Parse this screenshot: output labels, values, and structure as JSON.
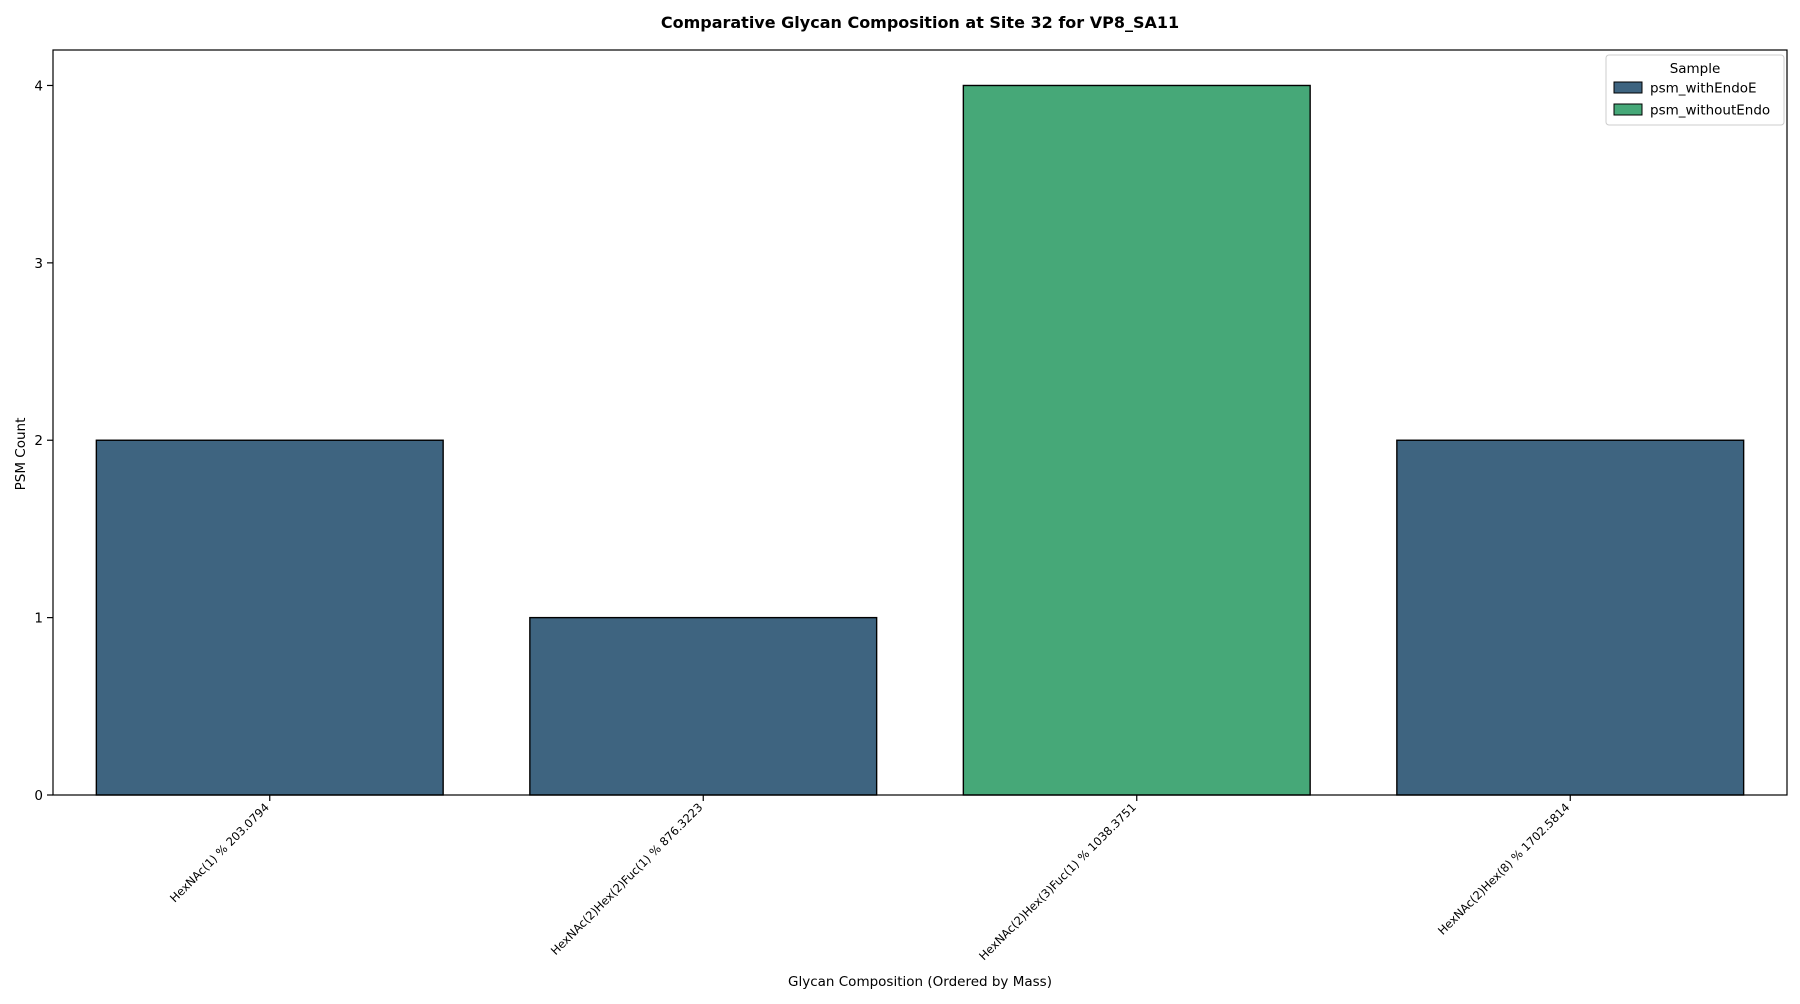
{
  "chart_data": {
    "type": "bar",
    "title": "Comparative Glycan Composition at Site 32 for VP8_SA11",
    "xlabel": "Glycan Composition (Ordered by Mass)",
    "ylabel": "PSM Count",
    "categories": [
      "HexNAc(1) % 203.0794",
      "HexNAc(2)Hex(2)Fuc(1) % 876.3223",
      "HexNAc(2)Hex(3)Fuc(1) % 1038.3751",
      "HexNAc(2)Hex(8) % 1702.5814"
    ],
    "bar_sample": [
      "psm_withEndoE",
      "psm_withEndoE",
      "psm_withoutEndo",
      "psm_withEndoE"
    ],
    "values": [
      2,
      1,
      4,
      2
    ],
    "ylim": [
      0,
      4.2
    ],
    "yticks": [
      0,
      1,
      2,
      3,
      4
    ],
    "grid": false,
    "legend": {
      "title": "Sample",
      "placement": "top-right",
      "entries": [
        {
          "name": "psm_withEndoE",
          "color": "#3e6480"
        },
        {
          "name": "psm_withoutEndo",
          "color": "#46a878"
        }
      ]
    },
    "bar_edge_color": "#000000"
  }
}
